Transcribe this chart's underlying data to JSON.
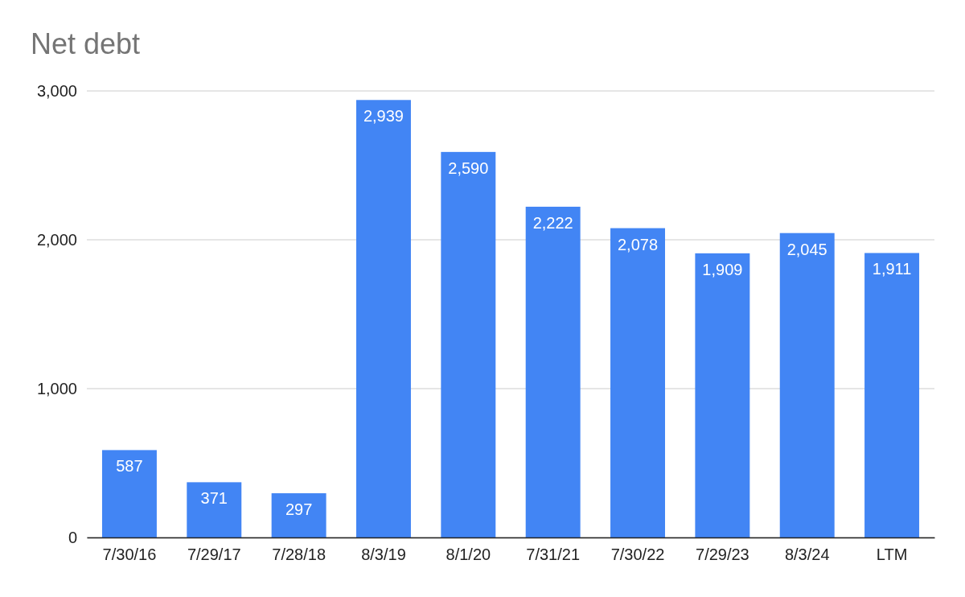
{
  "chart_data": {
    "type": "bar",
    "title": "Net debt",
    "categories": [
      "7/30/16",
      "7/29/17",
      "7/28/18",
      "8/3/19",
      "8/1/20",
      "7/31/21",
      "7/30/22",
      "7/29/23",
      "8/3/24",
      "LTM"
    ],
    "values": [
      587,
      371,
      297,
      2939,
      2590,
      2222,
      2078,
      1909,
      2045,
      1911
    ],
    "value_labels": [
      "587",
      "371",
      "297",
      "2,939",
      "2,590",
      "2,222",
      "2,078",
      "1,909",
      "2,045",
      "1,911"
    ],
    "color": "#4285f4",
    "ylim": [
      0,
      3000
    ],
    "yticks": [
      {
        "value": 0,
        "label": "0"
      },
      {
        "value": 1000,
        "label": "1,000"
      },
      {
        "value": 2000,
        "label": "2,000"
      },
      {
        "value": 3000,
        "label": "3,000"
      }
    ],
    "grid": "y"
  }
}
